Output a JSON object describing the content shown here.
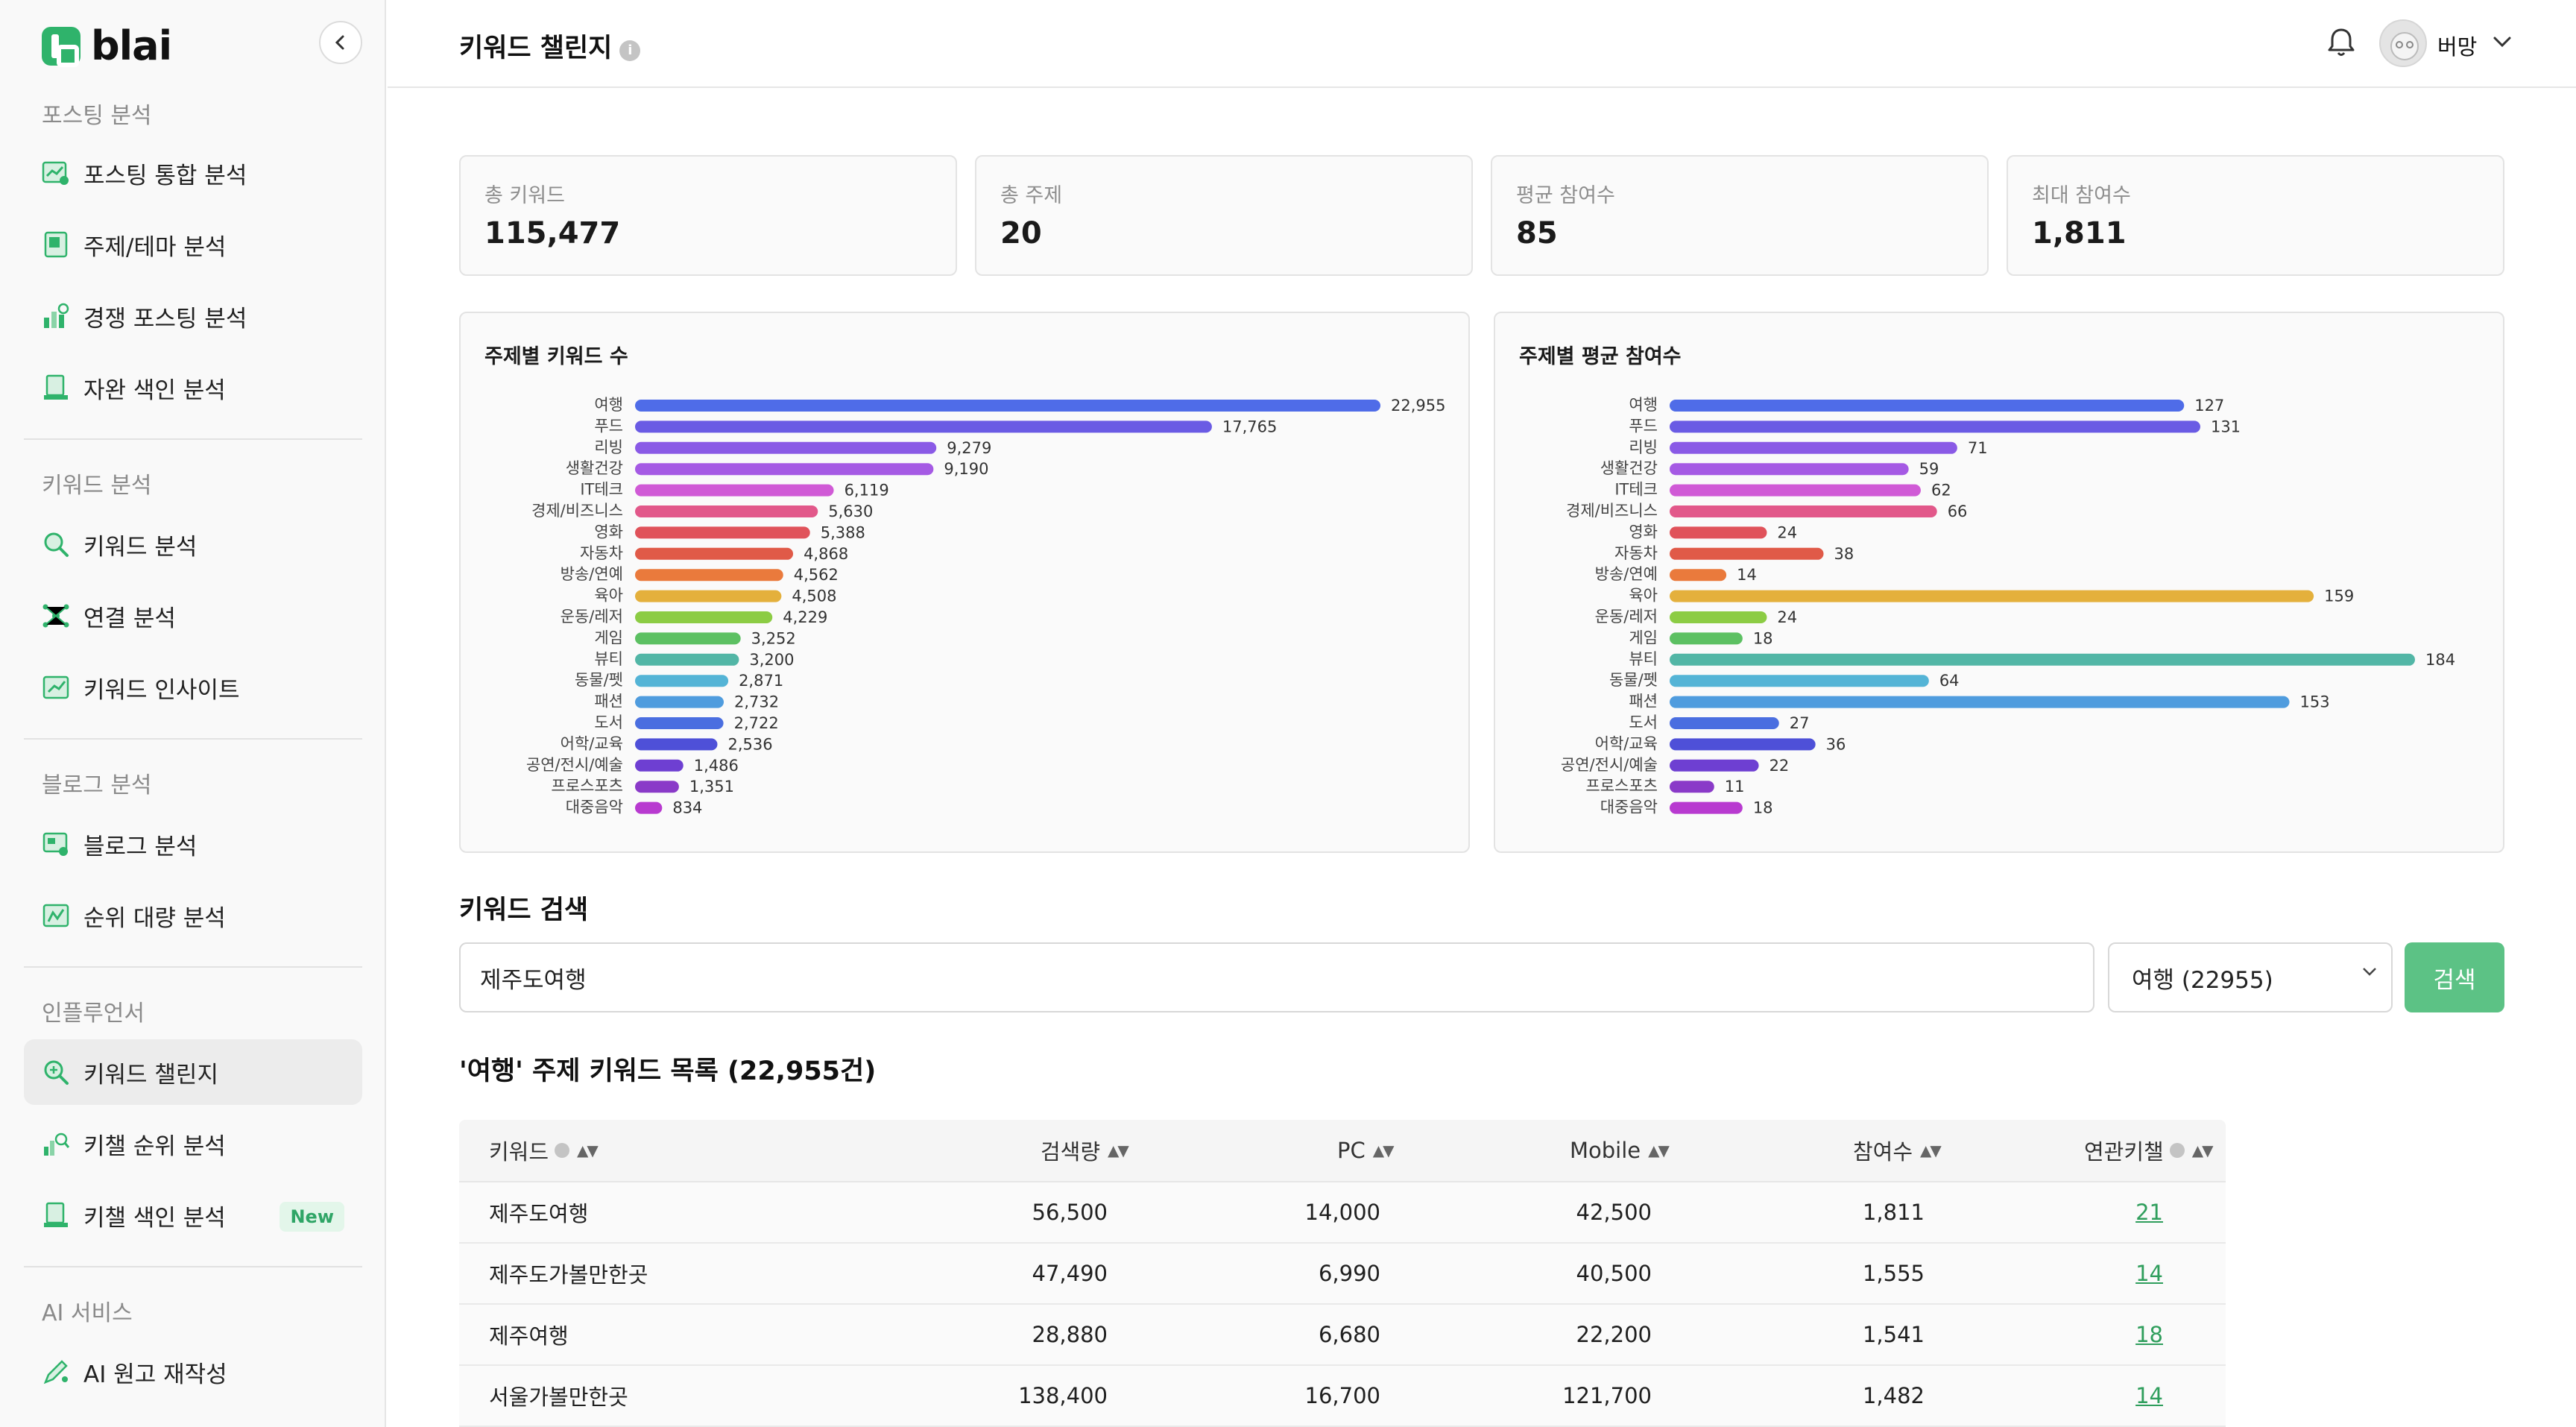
{
  "app": {
    "logo_text": "blai",
    "brand_color": "#2fb36b"
  },
  "sidebar": {
    "sections": [
      {
        "title": "포스팅 분석",
        "items": [
          {
            "label": "포스팅 통합 분석",
            "icon": "chart-doc-icon"
          },
          {
            "label": "주제/테마 분석",
            "icon": "book-icon"
          },
          {
            "label": "경쟁 포스팅 분석",
            "icon": "bar-compare-icon"
          },
          {
            "label": "자완 색인 분석",
            "icon": "index-icon"
          }
        ]
      },
      {
        "title": "키워드 분석",
        "items": [
          {
            "label": "키워드 분석",
            "icon": "magnifier-icon"
          },
          {
            "label": "연결 분석",
            "icon": "network-icon"
          },
          {
            "label": "키워드 인사이트",
            "icon": "insight-icon"
          }
        ]
      },
      {
        "title": "블로그 분석",
        "items": [
          {
            "label": "블로그 분석",
            "icon": "blog-icon"
          },
          {
            "label": "순위 대량 분석",
            "icon": "rank-icon"
          }
        ]
      },
      {
        "title": "인플루언서",
        "items": [
          {
            "label": "키워드 챌린지",
            "icon": "search-plus-icon",
            "active": true
          },
          {
            "label": "키챌 순위 분석",
            "icon": "rank-search-icon"
          },
          {
            "label": "키챌 색인 분석",
            "icon": "index-icon",
            "badge": "New"
          }
        ]
      },
      {
        "title": "AI 서비스",
        "items": [
          {
            "label": "AI 원고 재작성",
            "icon": "pen-icon"
          }
        ]
      }
    ]
  },
  "header": {
    "title": "키워드 챌린지",
    "info": "i",
    "user_name": "버망"
  },
  "stats": [
    {
      "label": "총 키워드",
      "value": "115,477"
    },
    {
      "label": "총 주제",
      "value": "20"
    },
    {
      "label": "평균 참여수",
      "value": "85"
    },
    {
      "label": "최대 참여수",
      "value": "1,811"
    }
  ],
  "chart_data": [
    {
      "type": "bar",
      "orientation": "horizontal",
      "title": "주제별 키워드 수",
      "categories": [
        "여행",
        "푸드",
        "리빙",
        "생활건강",
        "IT테크",
        "경제/비즈니스",
        "영화",
        "자동차",
        "방송/연예",
        "육아",
        "운동/레저",
        "게임",
        "뷰티",
        "동물/펫",
        "패션",
        "도서",
        "어학/교육",
        "공연/전시/예술",
        "프로스포츠",
        "대중음악"
      ],
      "values": [
        22955,
        17765,
        9279,
        9190,
        6119,
        5630,
        5388,
        4868,
        4562,
        4508,
        4229,
        3252,
        3200,
        2871,
        2732,
        2722,
        2536,
        1486,
        1351,
        834
      ],
      "value_labels": [
        "22,955",
        "17,765",
        "9,279",
        "9,190",
        "6,119",
        "5,630",
        "5,388",
        "4,868",
        "4,562",
        "4,508",
        "4,229",
        "3,252",
        "3,200",
        "2,871",
        "2,732",
        "2,722",
        "2,536",
        "1,486",
        "1,351",
        "834"
      ],
      "colors": [
        "#4f6ce8",
        "#6a5be4",
        "#8a5ae6",
        "#a55ae4",
        "#d05ad6",
        "#e2588a",
        "#e0525a",
        "#e05a48",
        "#ea7a3c",
        "#e4b03c",
        "#8ccc44",
        "#5cc062",
        "#52b6a6",
        "#54b4d6",
        "#4f9cde",
        "#4a6ee0",
        "#4e50d8",
        "#6e3fd2",
        "#8a3ac8",
        "#b83ad0"
      ]
    },
    {
      "type": "bar",
      "orientation": "horizontal",
      "title": "주제별 평균 참여수",
      "categories": [
        "여행",
        "푸드",
        "리빙",
        "생활건강",
        "IT테크",
        "경제/비즈니스",
        "영화",
        "자동차",
        "방송/연예",
        "육아",
        "운동/레저",
        "게임",
        "뷰티",
        "동물/펫",
        "패션",
        "도서",
        "어학/교육",
        "공연/전시/예술",
        "프로스포츠",
        "대중음악"
      ],
      "values": [
        127,
        131,
        71,
        59,
        62,
        66,
        24,
        38,
        14,
        159,
        24,
        18,
        184,
        64,
        153,
        27,
        36,
        22,
        11,
        18
      ],
      "value_labels": [
        "127",
        "131",
        "71",
        "59",
        "62",
        "66",
        "24",
        "38",
        "14",
        "159",
        "24",
        "18",
        "184",
        "64",
        "153",
        "27",
        "36",
        "22",
        "11",
        "18"
      ],
      "colors": [
        "#4f6ce8",
        "#6a5be4",
        "#8a5ae6",
        "#a55ae4",
        "#d05ad6",
        "#e2588a",
        "#e0525a",
        "#e05a48",
        "#ea7a3c",
        "#e4b03c",
        "#8ccc44",
        "#5cc062",
        "#52b6a6",
        "#54b4d6",
        "#4f9cde",
        "#4a6ee0",
        "#4e50d8",
        "#6e3fd2",
        "#8a3ac8",
        "#b83ad0"
      ]
    }
  ],
  "search": {
    "section_title": "키워드 검색",
    "input_value": "제주도여행",
    "select_value": "여행 (22955)",
    "button_label": "검색",
    "accent_color": "#5cc285"
  },
  "list": {
    "title": "'여행' 주제 키워드 목록 (22,955건)",
    "columns": [
      "키워드",
      "검색량",
      "PC",
      "Mobile",
      "참여수",
      "연관키챌"
    ],
    "rows": [
      [
        "제주도여행",
        "56,500",
        "14,000",
        "42,500",
        "1,811",
        "21"
      ],
      [
        "제주도가볼만한곳",
        "47,490",
        "6,990",
        "40,500",
        "1,555",
        "14"
      ],
      [
        "제주여행",
        "28,880",
        "6,680",
        "22,200",
        "1,541",
        "18"
      ],
      [
        "서울가볼만한곳",
        "138,400",
        "16,700",
        "121,700",
        "1,482",
        "14"
      ]
    ]
  }
}
